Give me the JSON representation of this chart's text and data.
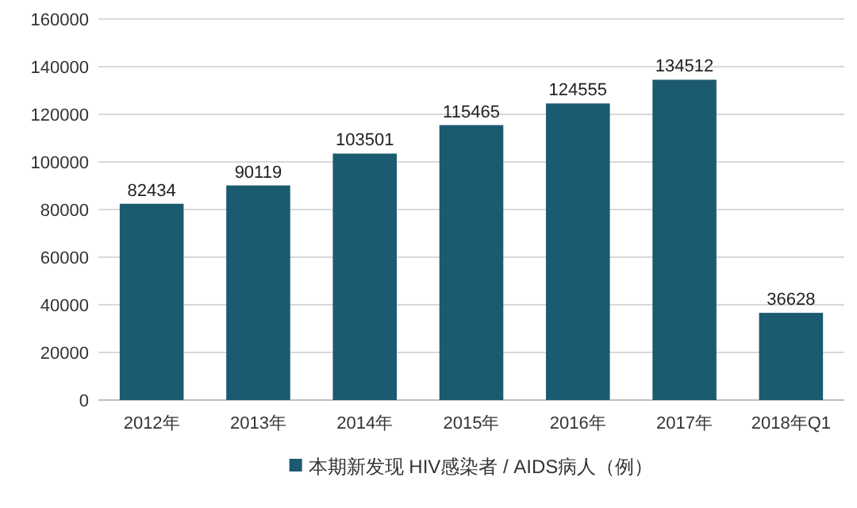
{
  "chart_data": {
    "type": "bar",
    "categories": [
      "2012年",
      "2013年",
      "2014年",
      "2015年",
      "2016年",
      "2017年",
      "2018年Q1"
    ],
    "series": [
      {
        "name": "本期新发现 HIV感染者 / AIDS病人（例）",
        "color": "#1b5a70",
        "values": [
          82434,
          90119,
          103501,
          115465,
          124555,
          134512,
          36628
        ]
      }
    ],
    "ylim": [
      0,
      160000
    ],
    "yticks": [
      0,
      20000,
      40000,
      60000,
      80000,
      100000,
      120000,
      140000,
      160000
    ],
    "grid": "y",
    "legend": "bottom",
    "data_labels": true
  }
}
